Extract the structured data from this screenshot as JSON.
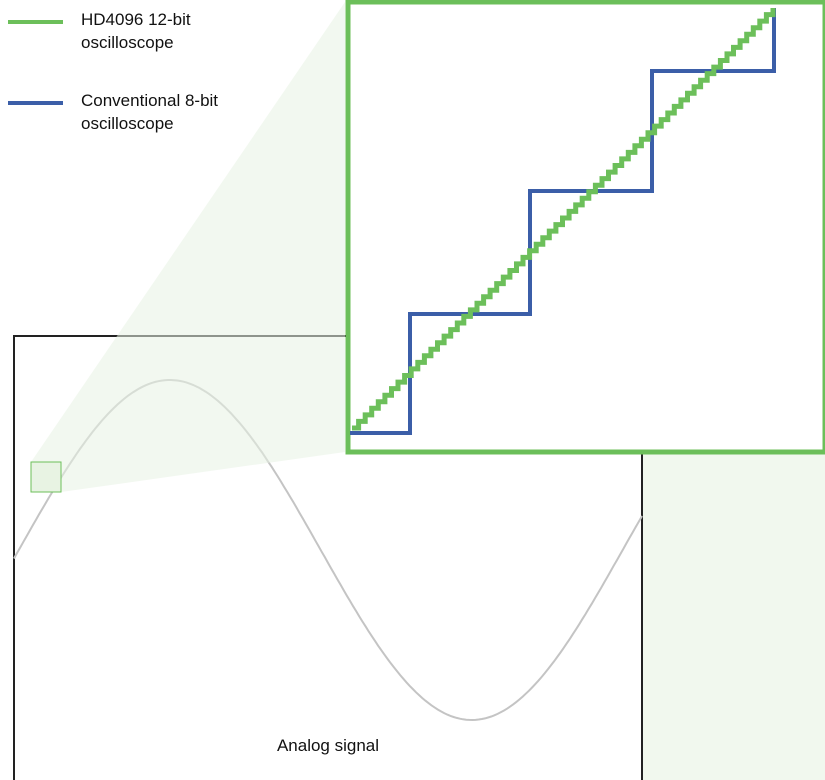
{
  "legend": [
    {
      "label": "HD4096 12-bit\noscilloscope",
      "color": "#6cbf5a"
    },
    {
      "label": "Conventional 8-bit\noscilloscope",
      "color": "#3b5ea8"
    }
  ],
  "analog_panel": {
    "label": "Analog signal",
    "signal_color": "#c4c4c4"
  },
  "zoom": {
    "border_color": "#6cbf5a",
    "highlight_color": "#6cbf5a",
    "fill_color": "#e8f3e3"
  },
  "icons": [
    "12bit-legend-swatch",
    "8bit-legend-swatch"
  ]
}
